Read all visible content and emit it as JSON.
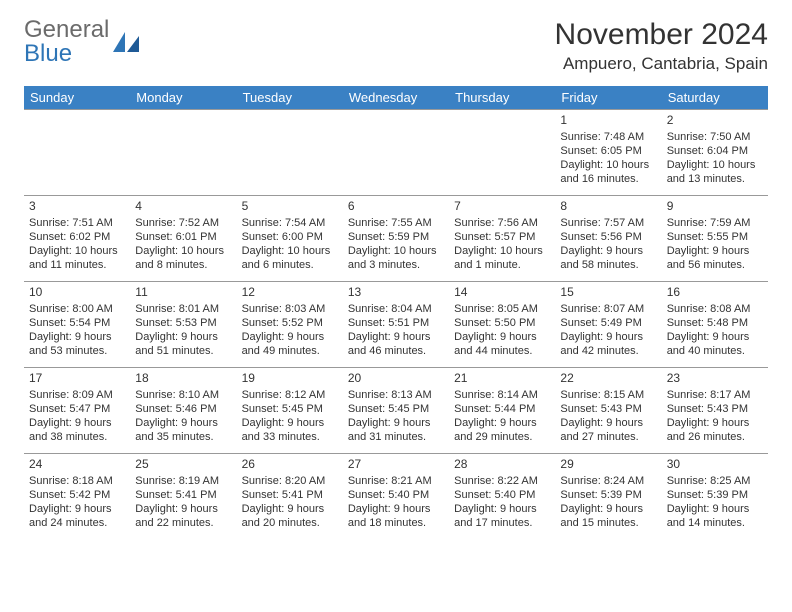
{
  "logo": {
    "text1": "General",
    "text2": "Blue"
  },
  "title": "November 2024",
  "location": "Ampuero, Cantabria, Spain",
  "colors": {
    "header_bg": "#3A81C4",
    "header_fg": "#ffffff",
    "text": "#333333",
    "logo_gray": "#6b6b6b",
    "logo_blue": "#2e75b6",
    "border": "#999999",
    "background": "#ffffff"
  },
  "typography": {
    "title_fontsize": 30,
    "location_fontsize": 17,
    "dow_fontsize": 13,
    "daynum_fontsize": 12,
    "detail_fontsize": 11
  },
  "dow": [
    "Sunday",
    "Monday",
    "Tuesday",
    "Wednesday",
    "Thursday",
    "Friday",
    "Saturday"
  ],
  "weeks": [
    [
      null,
      null,
      null,
      null,
      null,
      {
        "n": "1",
        "sr": "Sunrise: 7:48 AM",
        "ss": "Sunset: 6:05 PM",
        "dl": "Daylight: 10 hours and 16 minutes."
      },
      {
        "n": "2",
        "sr": "Sunrise: 7:50 AM",
        "ss": "Sunset: 6:04 PM",
        "dl": "Daylight: 10 hours and 13 minutes."
      }
    ],
    [
      {
        "n": "3",
        "sr": "Sunrise: 7:51 AM",
        "ss": "Sunset: 6:02 PM",
        "dl": "Daylight: 10 hours and 11 minutes."
      },
      {
        "n": "4",
        "sr": "Sunrise: 7:52 AM",
        "ss": "Sunset: 6:01 PM",
        "dl": "Daylight: 10 hours and 8 minutes."
      },
      {
        "n": "5",
        "sr": "Sunrise: 7:54 AM",
        "ss": "Sunset: 6:00 PM",
        "dl": "Daylight: 10 hours and 6 minutes."
      },
      {
        "n": "6",
        "sr": "Sunrise: 7:55 AM",
        "ss": "Sunset: 5:59 PM",
        "dl": "Daylight: 10 hours and 3 minutes."
      },
      {
        "n": "7",
        "sr": "Sunrise: 7:56 AM",
        "ss": "Sunset: 5:57 PM",
        "dl": "Daylight: 10 hours and 1 minute."
      },
      {
        "n": "8",
        "sr": "Sunrise: 7:57 AM",
        "ss": "Sunset: 5:56 PM",
        "dl": "Daylight: 9 hours and 58 minutes."
      },
      {
        "n": "9",
        "sr": "Sunrise: 7:59 AM",
        "ss": "Sunset: 5:55 PM",
        "dl": "Daylight: 9 hours and 56 minutes."
      }
    ],
    [
      {
        "n": "10",
        "sr": "Sunrise: 8:00 AM",
        "ss": "Sunset: 5:54 PM",
        "dl": "Daylight: 9 hours and 53 minutes."
      },
      {
        "n": "11",
        "sr": "Sunrise: 8:01 AM",
        "ss": "Sunset: 5:53 PM",
        "dl": "Daylight: 9 hours and 51 minutes."
      },
      {
        "n": "12",
        "sr": "Sunrise: 8:03 AM",
        "ss": "Sunset: 5:52 PM",
        "dl": "Daylight: 9 hours and 49 minutes."
      },
      {
        "n": "13",
        "sr": "Sunrise: 8:04 AM",
        "ss": "Sunset: 5:51 PM",
        "dl": "Daylight: 9 hours and 46 minutes."
      },
      {
        "n": "14",
        "sr": "Sunrise: 8:05 AM",
        "ss": "Sunset: 5:50 PM",
        "dl": "Daylight: 9 hours and 44 minutes."
      },
      {
        "n": "15",
        "sr": "Sunrise: 8:07 AM",
        "ss": "Sunset: 5:49 PM",
        "dl": "Daylight: 9 hours and 42 minutes."
      },
      {
        "n": "16",
        "sr": "Sunrise: 8:08 AM",
        "ss": "Sunset: 5:48 PM",
        "dl": "Daylight: 9 hours and 40 minutes."
      }
    ],
    [
      {
        "n": "17",
        "sr": "Sunrise: 8:09 AM",
        "ss": "Sunset: 5:47 PM",
        "dl": "Daylight: 9 hours and 38 minutes."
      },
      {
        "n": "18",
        "sr": "Sunrise: 8:10 AM",
        "ss": "Sunset: 5:46 PM",
        "dl": "Daylight: 9 hours and 35 minutes."
      },
      {
        "n": "19",
        "sr": "Sunrise: 8:12 AM",
        "ss": "Sunset: 5:45 PM",
        "dl": "Daylight: 9 hours and 33 minutes."
      },
      {
        "n": "20",
        "sr": "Sunrise: 8:13 AM",
        "ss": "Sunset: 5:45 PM",
        "dl": "Daylight: 9 hours and 31 minutes."
      },
      {
        "n": "21",
        "sr": "Sunrise: 8:14 AM",
        "ss": "Sunset: 5:44 PM",
        "dl": "Daylight: 9 hours and 29 minutes."
      },
      {
        "n": "22",
        "sr": "Sunrise: 8:15 AM",
        "ss": "Sunset: 5:43 PM",
        "dl": "Daylight: 9 hours and 27 minutes."
      },
      {
        "n": "23",
        "sr": "Sunrise: 8:17 AM",
        "ss": "Sunset: 5:43 PM",
        "dl": "Daylight: 9 hours and 26 minutes."
      }
    ],
    [
      {
        "n": "24",
        "sr": "Sunrise: 8:18 AM",
        "ss": "Sunset: 5:42 PM",
        "dl": "Daylight: 9 hours and 24 minutes."
      },
      {
        "n": "25",
        "sr": "Sunrise: 8:19 AM",
        "ss": "Sunset: 5:41 PM",
        "dl": "Daylight: 9 hours and 22 minutes."
      },
      {
        "n": "26",
        "sr": "Sunrise: 8:20 AM",
        "ss": "Sunset: 5:41 PM",
        "dl": "Daylight: 9 hours and 20 minutes."
      },
      {
        "n": "27",
        "sr": "Sunrise: 8:21 AM",
        "ss": "Sunset: 5:40 PM",
        "dl": "Daylight: 9 hours and 18 minutes."
      },
      {
        "n": "28",
        "sr": "Sunrise: 8:22 AM",
        "ss": "Sunset: 5:40 PM",
        "dl": "Daylight: 9 hours and 17 minutes."
      },
      {
        "n": "29",
        "sr": "Sunrise: 8:24 AM",
        "ss": "Sunset: 5:39 PM",
        "dl": "Daylight: 9 hours and 15 minutes."
      },
      {
        "n": "30",
        "sr": "Sunrise: 8:25 AM",
        "ss": "Sunset: 5:39 PM",
        "dl": "Daylight: 9 hours and 14 minutes."
      }
    ]
  ]
}
